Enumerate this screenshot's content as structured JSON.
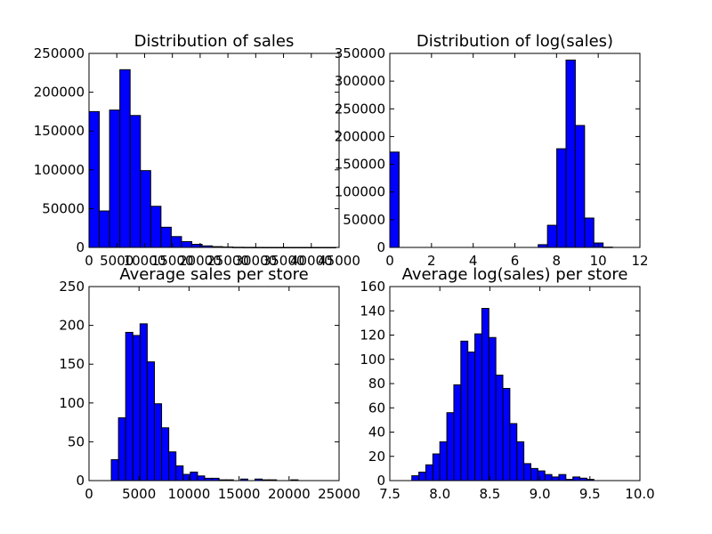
{
  "colors": {
    "bar_fill": "#0000ff",
    "bar_edge": "#000000",
    "axes": "#000000",
    "background": "#ffffff"
  },
  "chart_data": [
    {
      "type": "bar",
      "title": "Distribution of sales",
      "xlabel": "",
      "ylabel": "",
      "xlim": [
        0,
        45000
      ],
      "ylim": [
        0,
        250000
      ],
      "xticks": [
        0,
        5000,
        10000,
        15000,
        20000,
        25000,
        30000,
        35000,
        40000,
        45000
      ],
      "xtick_labels": [
        "0",
        "5000",
        "10000",
        "15000",
        "20000",
        "25000",
        "30000",
        "35000",
        "40000",
        "45000"
      ],
      "yticks": [
        0,
        50000,
        100000,
        150000,
        200000,
        250000
      ],
      "ytick_labels": [
        "0",
        "50000",
        "100000",
        "150000",
        "200000",
        "250000"
      ],
      "bin_start": 0,
      "bin_width": 1850,
      "values": [
        175000,
        47000,
        177000,
        229000,
        170000,
        99000,
        53000,
        26000,
        14000,
        7500,
        4000,
        2000,
        1000,
        500,
        200,
        100,
        50,
        30,
        15,
        10,
        5,
        5,
        3,
        2
      ]
    },
    {
      "type": "bar",
      "title": "Distribution of log(sales)",
      "xlabel": "",
      "ylabel": "",
      "xlim": [
        0,
        12
      ],
      "ylim": [
        0,
        350000
      ],
      "xticks": [
        0,
        2,
        4,
        6,
        8,
        10,
        12
      ],
      "xtick_labels": [
        "0",
        "2",
        "4",
        "6",
        "8",
        "10",
        "12"
      ],
      "yticks": [
        0,
        50000,
        100000,
        150000,
        200000,
        250000,
        300000,
        350000
      ],
      "ytick_labels": [
        "0",
        "50000",
        "100000",
        "150000",
        "200000",
        "250000",
        "300000",
        "350000"
      ],
      "bin_start": 0,
      "bin_width": 0.445,
      "values": [
        172000,
        0,
        0,
        0,
        0,
        0,
        0,
        0,
        0,
        0,
        0,
        0,
        0,
        0,
        0,
        0,
        5000,
        40000,
        178000,
        338000,
        220000,
        53000,
        8000,
        500
      ]
    },
    {
      "type": "bar",
      "title": "Average sales per store",
      "xlabel": "",
      "ylabel": "",
      "xlim": [
        0,
        25000
      ],
      "ylim": [
        0,
        250
      ],
      "xticks": [
        0,
        5000,
        10000,
        15000,
        20000,
        25000
      ],
      "xtick_labels": [
        "0",
        "5000",
        "10000",
        "15000",
        "20000",
        "25000"
      ],
      "yticks": [
        0,
        50,
        100,
        150,
        200,
        250
      ],
      "ytick_labels": [
        "0",
        "50",
        "100",
        "150",
        "200",
        "250"
      ],
      "bin_start": 2230,
      "bin_width": 718,
      "values": [
        27,
        81,
        191,
        187,
        202,
        153,
        99,
        68,
        37,
        19,
        8,
        11,
        6,
        3,
        3,
        1,
        1,
        0,
        2,
        0,
        2,
        1,
        1,
        0,
        0,
        1,
        0,
        0,
        0,
        0
      ]
    },
    {
      "type": "bar",
      "title": "Average log(sales) per store",
      "xlabel": "",
      "ylabel": "",
      "xlim": [
        7.5,
        10.0
      ],
      "ylim": [
        0,
        160
      ],
      "xticks": [
        7.5,
        8.0,
        8.5,
        9.0,
        9.5,
        10.0
      ],
      "xtick_labels": [
        "7.5",
        "8.0",
        "8.5",
        "9.0",
        "9.5",
        "10.0"
      ],
      "yticks": [
        0,
        20,
        40,
        60,
        80,
        100,
        120,
        140,
        160
      ],
      "ytick_labels": [
        "0",
        "20",
        "40",
        "60",
        "80",
        "100",
        "120",
        "140",
        "160"
      ],
      "bin_start": 7.72,
      "bin_width": 0.07,
      "values": [
        4,
        7,
        13,
        22,
        32,
        56,
        79,
        115,
        106,
        121,
        142,
        118,
        87,
        76,
        47,
        32,
        14,
        10,
        8,
        5,
        3,
        5,
        1,
        3,
        2,
        1
      ]
    }
  ]
}
